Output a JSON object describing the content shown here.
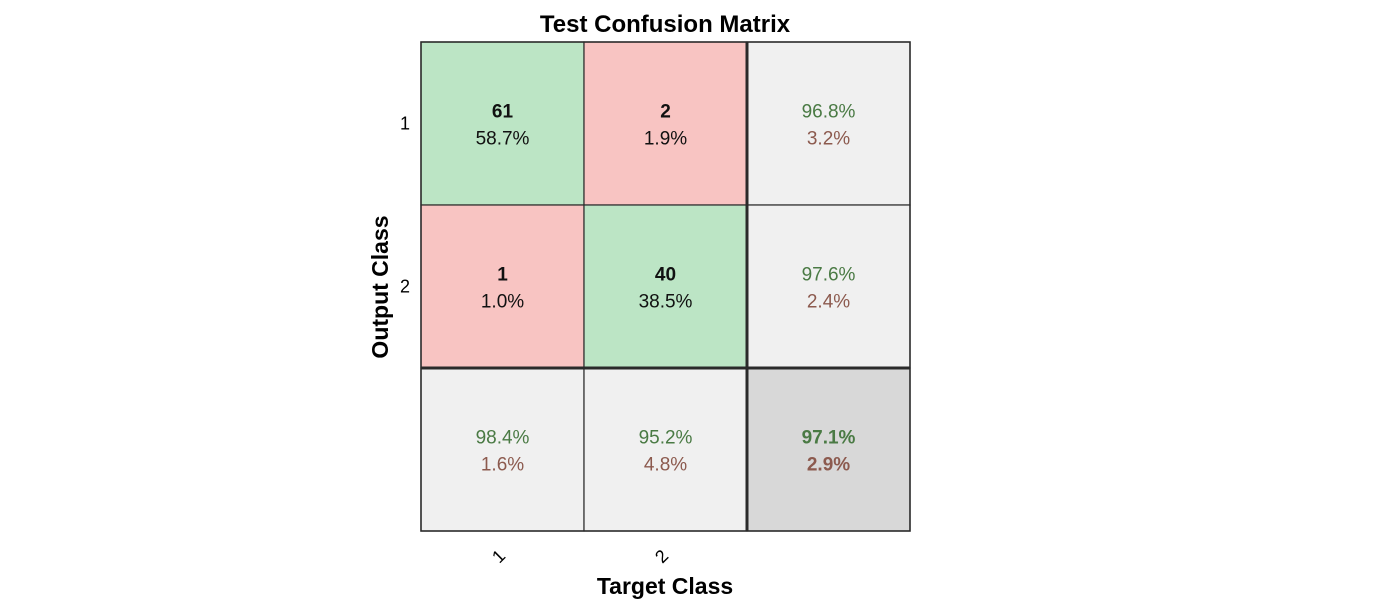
{
  "chart_data": {
    "type": "heatmap",
    "title": "Test Confusion Matrix",
    "xlabel": "Target Class",
    "ylabel": "Output Class",
    "classes": [
      "1",
      "2"
    ],
    "matrix": [
      [
        {
          "count": "61",
          "percent": "58.7%"
        },
        {
          "count": "2",
          "percent": "1.9%"
        }
      ],
      [
        {
          "count": "1",
          "percent": "1.0%"
        },
        {
          "count": "40",
          "percent": "38.5%"
        }
      ]
    ],
    "row_summary": [
      {
        "correct": "96.8%",
        "error": "3.2%"
      },
      {
        "correct": "97.6%",
        "error": "2.4%"
      }
    ],
    "column_summary": [
      {
        "correct": "98.4%",
        "error": "1.6%"
      },
      {
        "correct": "95.2%",
        "error": "4.8%"
      }
    ],
    "overall": {
      "correct": "97.1%",
      "error": "2.9%"
    }
  },
  "colors": {
    "correct_cell": "#bce5c5",
    "error_cell": "#f8c4c2",
    "summary_cell": "#f0f0f0",
    "overall_cell": "#d8d8d8",
    "good_text": "#4a7a44",
    "bad_text": "#8c5a4e",
    "border": "#2a2a2a"
  }
}
